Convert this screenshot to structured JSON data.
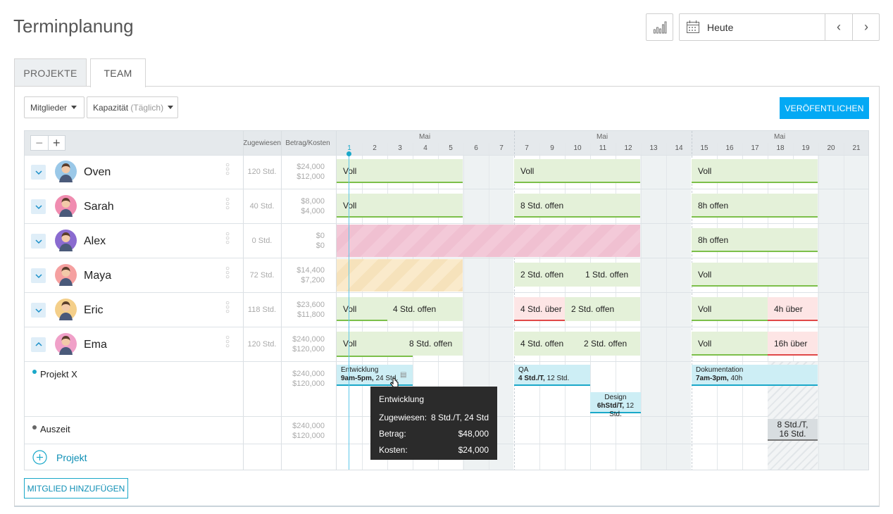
{
  "header": {
    "title": "Terminplanung",
    "chart_icon": "bar-chart-icon",
    "date_label": "Heute",
    "prev": "‹",
    "next": "›"
  },
  "tabs": [
    {
      "label": "PROJEKTE"
    },
    {
      "label": "TEAM"
    }
  ],
  "toolbar": {
    "members_label": "Mitglieder",
    "capacity_label": "Kapazität",
    "capacity_hint": "(Täglich)",
    "publish_label": "VERÖFENTLICHEN"
  },
  "grid_header": {
    "zoom_minus": "−",
    "zoom_plus": "+",
    "assigned": "Zugewiesen",
    "amount_cost": "Betrag/Kosten",
    "month": "Mai",
    "days": [
      "1",
      "2",
      "3",
      "4",
      "5",
      "6",
      "7",
      "7",
      "9",
      "10",
      "11",
      "12",
      "13",
      "14",
      "15",
      "16",
      "17",
      "18",
      "19",
      "20",
      "21"
    ]
  },
  "members": [
    {
      "name": "Oven",
      "hours": "120 Std.",
      "amount": "$24,000",
      "cost": "$12,000",
      "avatar_color": "#9ac8e8",
      "bars": [
        "Voll",
        "Voll",
        "Voll"
      ]
    },
    {
      "name": "Sarah",
      "hours": "40 Std.",
      "amount": "$8,000",
      "cost": "$4,000",
      "avatar_color": "#f08cb0",
      "bars": [
        "Voll",
        "8 Std. offen",
        "8h offen"
      ]
    },
    {
      "name": "Alex",
      "hours": "0 Std.",
      "amount": "$0",
      "cost": "$0",
      "avatar_color": "#8a6bd0",
      "bars": [
        "8h offen"
      ]
    },
    {
      "name": "Maya",
      "hours": "72 Std.",
      "amount": "$14,400",
      "cost": "$7,200",
      "avatar_color": "#f5a0a0",
      "bars": [
        "2 Std. offen",
        "1 Std. offen",
        "Voll"
      ]
    },
    {
      "name": "Eric",
      "hours": "118 Std.",
      "amount": "$23,600",
      "cost": "$11,800",
      "avatar_color": "#f4cf8a",
      "bars": [
        "Voll",
        "4 Std. offen",
        "4 Std. über",
        "2 Std. offen",
        "Voll",
        "4h über"
      ]
    },
    {
      "name": "Ema",
      "hours": "120 Std.",
      "amount": "$240,000",
      "cost": "$120,000",
      "avatar_color": "#f0a0c8",
      "bars": [
        "Voll",
        "8 Std. offen",
        "4 Std. offen",
        "2 Std. offen",
        "Voll",
        "16h über"
      ]
    }
  ],
  "projects": [
    {
      "name": "Projekt X",
      "amount": "$240,000",
      "cost": "$120,000",
      "dot_color": "#1aa8c9"
    },
    {
      "name": "Auszeit",
      "amount": "$240,000",
      "cost": "$120,000",
      "dot_color": "#666666"
    }
  ],
  "tasks": [
    {
      "title": "Entwicklung",
      "bold": "9am-5pm,",
      "rest": "24 Std."
    },
    {
      "title": "QA",
      "bold": "4 Std./T,",
      "rest": "12 Std."
    },
    {
      "title": "Design",
      "bold": "6hStd/T,",
      "rest": "12 Std."
    },
    {
      "title": "Dokumentation",
      "bold": "7am-3pm,",
      "rest": "40h"
    },
    {
      "line1": "8 Std./T,",
      "line2": "16 Std."
    }
  ],
  "add_project": "Projekt",
  "tooltip": {
    "title": "Entwicklung",
    "rows": [
      {
        "k": "Zugewiesen:",
        "v": "8 Std./T, 24 Std"
      },
      {
        "k": "Betrag:",
        "v": "$48,000"
      },
      {
        "k": "Kosten:",
        "v": "$24,000"
      }
    ]
  },
  "add_member": "MITGLIED HINZUFÜGEN",
  "colors": {
    "accent": "#03a9f4",
    "full": "#7cbf4a",
    "over": "#e04848",
    "task": "#1aa8c9"
  }
}
